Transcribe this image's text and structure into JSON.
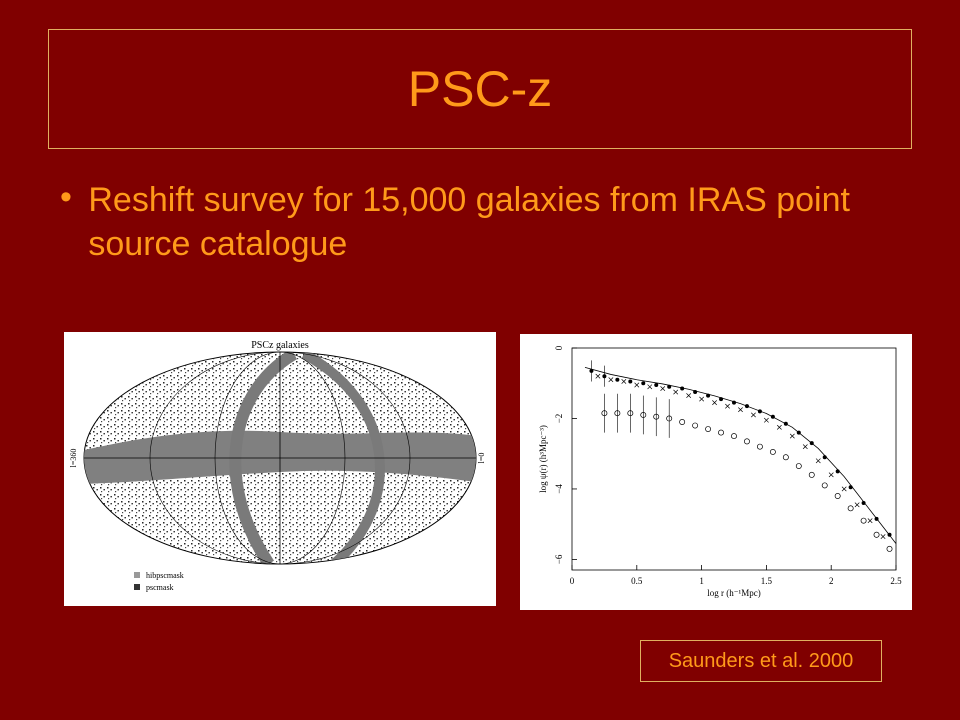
{
  "slide": {
    "title": "PSC-z",
    "bullet": "Reshift survey for 15,000 galaxies from IRAS point source catalogue",
    "citation": "Saunders et al. 2000"
  },
  "sky_map": {
    "title": "PSCz galaxies",
    "left_label": "l=360",
    "right_label": "l=0",
    "legend": [
      "hibpscmask",
      "pscmask"
    ]
  },
  "correlation_plot": {
    "xlabel": "log r (h⁻¹Mpc)",
    "ylabel": "log ψ(r) (h³Mpc⁻³)",
    "x_ticks": [
      "0",
      "0.5",
      "1",
      "1.5",
      "2",
      "2.5"
    ],
    "y_ticks": [
      "0",
      "−2",
      "−4",
      "−6"
    ],
    "filled_series": [
      [
        0.15,
        -0.65
      ],
      [
        0.25,
        -0.8
      ],
      [
        0.35,
        -0.9
      ],
      [
        0.45,
        -0.95
      ],
      [
        0.55,
        -1.0
      ],
      [
        0.65,
        -1.05
      ],
      [
        0.75,
        -1.1
      ],
      [
        0.85,
        -1.15
      ],
      [
        0.95,
        -1.25
      ],
      [
        1.05,
        -1.35
      ],
      [
        1.15,
        -1.45
      ],
      [
        1.25,
        -1.55
      ],
      [
        1.35,
        -1.65
      ],
      [
        1.45,
        -1.8
      ],
      [
        1.55,
        -1.95
      ],
      [
        1.65,
        -2.15
      ],
      [
        1.75,
        -2.4
      ],
      [
        1.85,
        -2.7
      ],
      [
        1.95,
        -3.1
      ],
      [
        2.05,
        -3.5
      ],
      [
        2.15,
        -3.95
      ],
      [
        2.25,
        -4.4
      ],
      [
        2.35,
        -4.85
      ],
      [
        2.45,
        -5.3
      ]
    ],
    "cross_series": [
      [
        0.2,
        -0.8
      ],
      [
        0.3,
        -0.9
      ],
      [
        0.4,
        -0.95
      ],
      [
        0.5,
        -1.05
      ],
      [
        0.6,
        -1.1
      ],
      [
        0.7,
        -1.15
      ],
      [
        0.8,
        -1.25
      ],
      [
        0.9,
        -1.35
      ],
      [
        1.0,
        -1.45
      ],
      [
        1.1,
        -1.55
      ],
      [
        1.2,
        -1.65
      ],
      [
        1.3,
        -1.75
      ],
      [
        1.4,
        -1.9
      ],
      [
        1.5,
        -2.05
      ],
      [
        1.6,
        -2.25
      ],
      [
        1.7,
        -2.5
      ],
      [
        1.8,
        -2.8
      ],
      [
        1.9,
        -3.2
      ],
      [
        2.0,
        -3.6
      ],
      [
        2.1,
        -4.0
      ],
      [
        2.2,
        -4.45
      ],
      [
        2.3,
        -4.9
      ],
      [
        2.4,
        -5.35
      ]
    ],
    "open_series": [
      [
        0.25,
        -1.85
      ],
      [
        0.35,
        -1.85
      ],
      [
        0.45,
        -1.85
      ],
      [
        0.55,
        -1.9
      ],
      [
        0.65,
        -1.95
      ],
      [
        0.75,
        -2.0
      ],
      [
        0.85,
        -2.1
      ],
      [
        0.95,
        -2.2
      ],
      [
        1.05,
        -2.3
      ],
      [
        1.15,
        -2.4
      ],
      [
        1.25,
        -2.5
      ],
      [
        1.35,
        -2.65
      ],
      [
        1.45,
        -2.8
      ],
      [
        1.55,
        -2.95
      ],
      [
        1.65,
        -3.1
      ],
      [
        1.75,
        -3.35
      ],
      [
        1.85,
        -3.6
      ],
      [
        1.95,
        -3.9
      ],
      [
        2.05,
        -4.2
      ],
      [
        2.15,
        -4.55
      ],
      [
        2.25,
        -4.9
      ],
      [
        2.35,
        -5.3
      ],
      [
        2.45,
        -5.7
      ]
    ],
    "fit_curve": [
      [
        0.1,
        -0.55
      ],
      [
        0.3,
        -0.75
      ],
      [
        0.5,
        -0.9
      ],
      [
        0.7,
        -1.02
      ],
      [
        0.9,
        -1.17
      ],
      [
        1.1,
        -1.36
      ],
      [
        1.3,
        -1.58
      ],
      [
        1.5,
        -1.86
      ],
      [
        1.7,
        -2.25
      ],
      [
        1.9,
        -2.85
      ],
      [
        2.1,
        -3.65
      ],
      [
        2.3,
        -4.6
      ],
      [
        2.5,
        -5.55
      ]
    ]
  }
}
